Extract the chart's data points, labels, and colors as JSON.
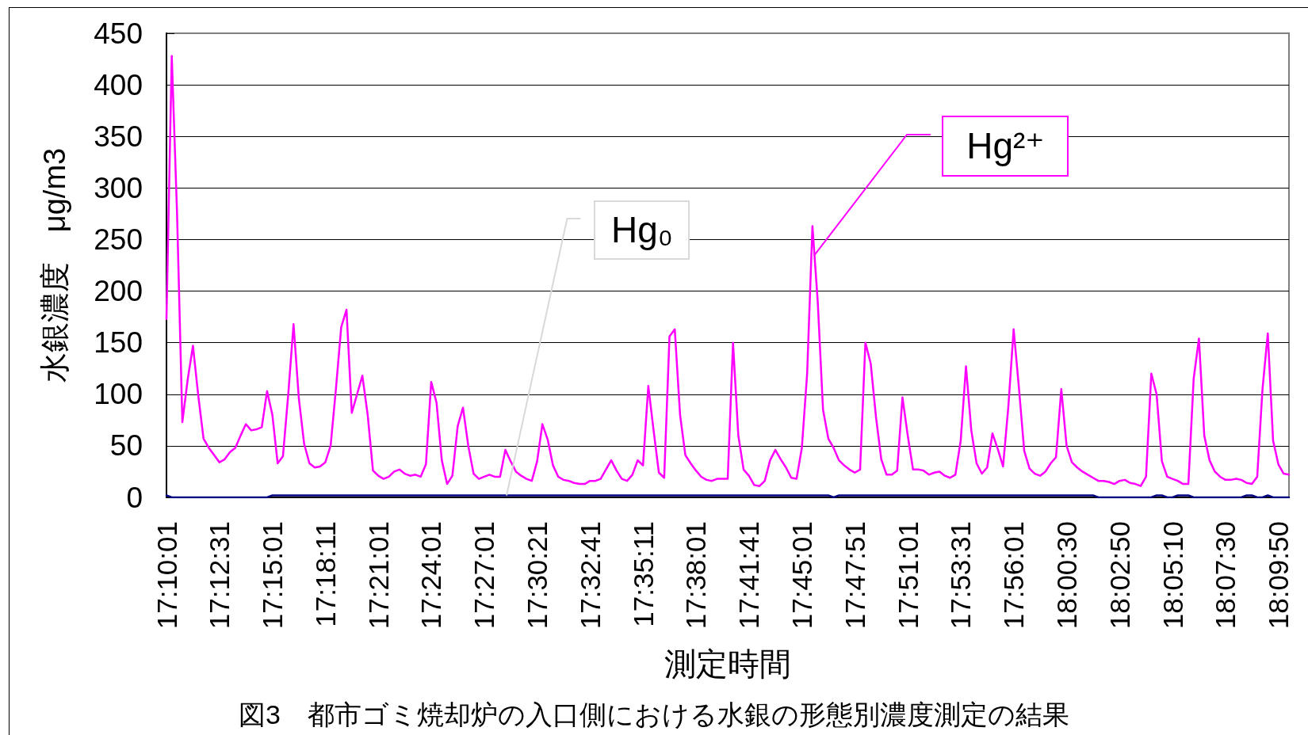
{
  "chart_data": {
    "type": "line",
    "title": "図3　都市ゴミ焼却炉の入口側における水銀の形態別濃度測定の結果",
    "xlabel": "測定時間",
    "ylabel": "水銀濃度　μg/m3",
    "categories": [
      "17:10:01",
      null,
      null,
      null,
      null,
      null,
      null,
      null,
      null,
      null,
      "17:12:31",
      null,
      null,
      null,
      null,
      null,
      null,
      null,
      null,
      null,
      "17:15:01",
      null,
      null,
      null,
      null,
      null,
      null,
      null,
      null,
      null,
      "17:18:11",
      null,
      null,
      null,
      null,
      null,
      null,
      null,
      null,
      null,
      "17:21:01",
      null,
      null,
      null,
      null,
      null,
      null,
      null,
      null,
      null,
      "17:24:01",
      null,
      null,
      null,
      null,
      null,
      null,
      null,
      null,
      null,
      "17:27:01",
      null,
      null,
      null,
      null,
      null,
      null,
      null,
      null,
      null,
      "17:30:21",
      null,
      null,
      null,
      null,
      null,
      null,
      null,
      null,
      null,
      "17:32:41",
      null,
      null,
      null,
      null,
      null,
      null,
      null,
      null,
      null,
      "17:35:11",
      null,
      null,
      null,
      null,
      null,
      null,
      null,
      null,
      null,
      "17:38:01",
      null,
      null,
      null,
      null,
      null,
      null,
      null,
      null,
      null,
      "17:41:41",
      null,
      null,
      null,
      null,
      null,
      null,
      null,
      null,
      null,
      "17:45:01",
      null,
      null,
      null,
      null,
      null,
      null,
      null,
      null,
      null,
      "17:47:51",
      null,
      null,
      null,
      null,
      null,
      null,
      null,
      null,
      null,
      "17:51:01",
      null,
      null,
      null,
      null,
      null,
      null,
      null,
      null,
      null,
      "17:53:31",
      null,
      null,
      null,
      null,
      null,
      null,
      null,
      null,
      null,
      "17:56:01",
      null,
      null,
      null,
      null,
      null,
      null,
      null,
      null,
      null,
      "18:00:30",
      null,
      null,
      null,
      null,
      null,
      null,
      null,
      null,
      null,
      "18:02:50",
      null,
      null,
      null,
      null,
      null,
      null,
      null,
      null,
      null,
      "18:05:10",
      null,
      null,
      null,
      null,
      null,
      null,
      null,
      null,
      null,
      "18:07:30",
      null,
      null,
      null,
      null,
      null,
      null,
      null,
      null,
      null,
      "18:09:50",
      null,
      null
    ],
    "series": [
      {
        "name": "Hg²⁺",
        "color": "#ff00ff",
        "values": [
          173,
          428,
          275,
          73,
          114,
          147,
          99,
          57,
          48,
          41,
          34,
          37,
          44,
          48,
          60,
          71,
          65,
          66,
          68,
          103,
          80,
          33,
          40,
          100,
          168,
          96,
          52,
          33,
          29,
          30,
          34,
          50,
          105,
          165,
          182,
          82,
          100,
          118,
          80,
          26,
          21,
          18,
          20,
          25,
          27,
          23,
          21,
          22,
          20,
          32,
          112,
          92,
          36,
          13,
          21,
          69,
          87,
          50,
          23,
          18,
          20,
          22,
          20,
          20,
          46,
          35,
          25,
          21,
          18,
          16,
          35,
          71,
          56,
          31,
          20,
          17,
          16,
          14,
          13,
          13,
          16,
          16,
          18,
          27,
          36,
          26,
          18,
          16,
          22,
          36,
          31,
          108,
          65,
          24,
          19,
          156,
          163,
          80,
          41,
          33,
          26,
          20,
          17,
          16,
          18,
          18,
          18,
          150,
          60,
          27,
          21,
          12,
          11,
          16,
          36,
          46,
          37,
          29,
          19,
          18,
          48,
          120,
          263,
          190,
          85,
          57,
          48,
          36,
          31,
          27,
          24,
          27,
          150,
          130,
          78,
          37,
          22,
          22,
          26,
          97,
          60,
          27,
          27,
          26,
          22,
          24,
          25,
          21,
          19,
          22,
          55,
          127,
          65,
          33,
          23,
          29,
          62,
          47,
          30,
          88,
          163,
          106,
          45,
          28,
          23,
          21,
          25,
          33,
          39,
          105,
          50,
          34,
          29,
          25,
          22,
          19,
          16,
          16,
          15,
          13,
          16,
          17,
          14,
          13,
          11,
          20,
          120,
          100,
          35,
          20,
          18,
          16,
          13,
          13,
          115,
          154,
          60,
          36,
          25,
          20,
          17,
          17,
          18,
          17,
          14,
          13,
          20,
          105,
          159,
          55,
          32,
          23,
          22
        ]
      },
      {
        "name": "Hg₀",
        "color": "#000080",
        "values": [
          2,
          0,
          0,
          0,
          0,
          0,
          0,
          0,
          0,
          0,
          0,
          0,
          0,
          0,
          0,
          0,
          0,
          0,
          0,
          0,
          2,
          2,
          2,
          2,
          2,
          2,
          2,
          2,
          2,
          2,
          2,
          2,
          2,
          2,
          2,
          2,
          2,
          2,
          2,
          2,
          2,
          2,
          2,
          2,
          2,
          2,
          2,
          2,
          2,
          2,
          2,
          2,
          2,
          2,
          2,
          2,
          2,
          2,
          2,
          2,
          2,
          2,
          2,
          2,
          2,
          2,
          2,
          2,
          2,
          2,
          2,
          2,
          2,
          2,
          2,
          2,
          2,
          2,
          2,
          2,
          2,
          2,
          2,
          2,
          2,
          2,
          2,
          2,
          2,
          2,
          2,
          2,
          2,
          2,
          2,
          2,
          2,
          2,
          2,
          2,
          2,
          2,
          2,
          2,
          2,
          2,
          2,
          2,
          2,
          2,
          2,
          2,
          2,
          2,
          2,
          2,
          2,
          2,
          2,
          2,
          2,
          2,
          2,
          2,
          2,
          2,
          0,
          2,
          2,
          2,
          2,
          2,
          2,
          2,
          2,
          2,
          2,
          2,
          2,
          2,
          2,
          2,
          2,
          2,
          2,
          2,
          2,
          2,
          2,
          2,
          2,
          2,
          2,
          2,
          2,
          2,
          2,
          2,
          2,
          2,
          2,
          2,
          2,
          2,
          2,
          2,
          2,
          2,
          2,
          2,
          2,
          2,
          2,
          2,
          2,
          2,
          0,
          0,
          0,
          0,
          0,
          0,
          0,
          0,
          0,
          0,
          0,
          2,
          2,
          0,
          0,
          2,
          2,
          2,
          0,
          0,
          0,
          0,
          0,
          0,
          0,
          0,
          0,
          0,
          2,
          2,
          0,
          0,
          2,
          0,
          0,
          0,
          0
        ]
      }
    ],
    "ylim": [
      0,
      450
    ],
    "yticks": [
      0,
      50,
      100,
      150,
      200,
      250,
      300,
      350,
      400,
      450
    ],
    "grid": "y"
  }
}
